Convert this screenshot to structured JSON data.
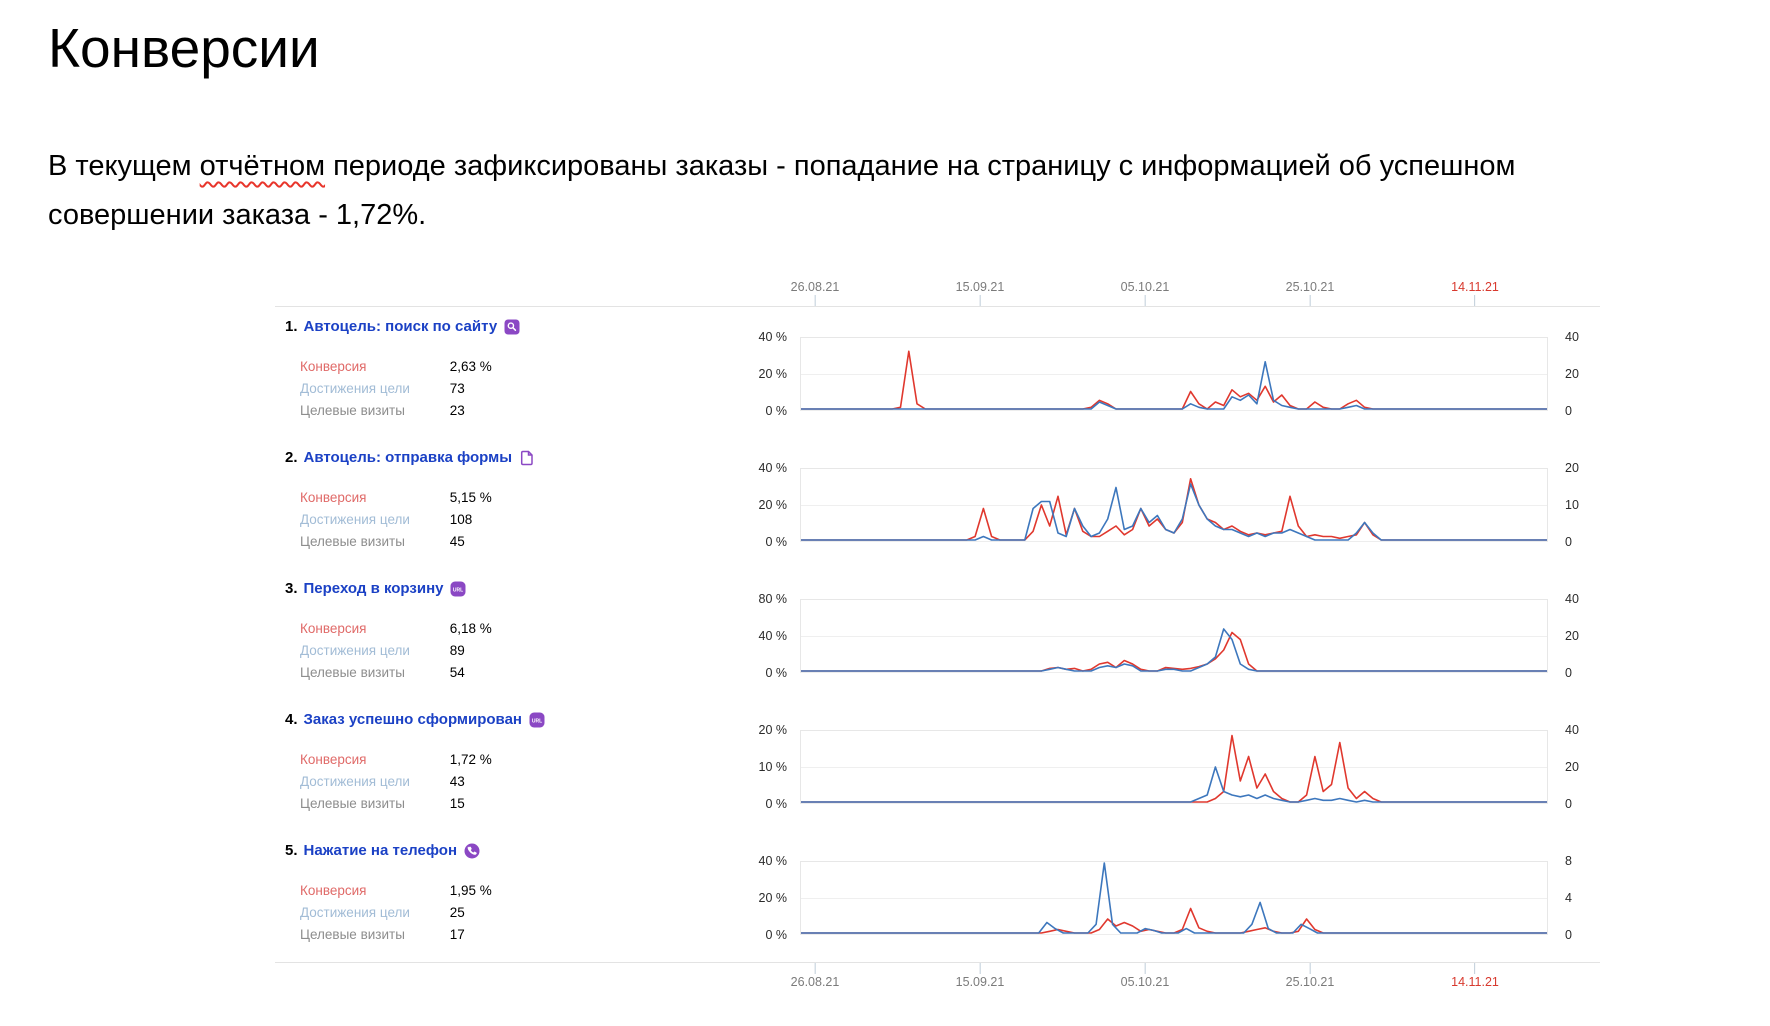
{
  "title": "Конверсии",
  "intro": {
    "before": "В текущем ",
    "misspelled": "отчётном",
    "after": " периоде зафиксированы заказы - попадание на страницу с информацией об успешном совершении заказа - 1,72%."
  },
  "colors": {
    "red_line": "#e0382e",
    "blue_line": "#3d77bd",
    "goal_link": "#1b41c5",
    "badge_purple": "#8b48c4",
    "conversion_label": "#e06a68",
    "reaches_label": "#a2bcd6",
    "visits_label": "#8d8d8d",
    "current_date": "#d8392e"
  },
  "report": {
    "stat_labels": {
      "conversion": "Конверсия",
      "goal_reaches": "Достижения цели",
      "target_visits": "Целевые визиты"
    },
    "dates": [
      {
        "label": "26.08.21",
        "current": false,
        "x": 540
      },
      {
        "label": "15.09.21",
        "current": false,
        "x": 705
      },
      {
        "label": "05.10.21",
        "current": false,
        "x": 870
      },
      {
        "label": "25.10.21",
        "current": false,
        "x": 1035
      },
      {
        "label": "14.11.21",
        "current": true,
        "x": 1200
      }
    ],
    "goals": [
      {
        "number": "1.",
        "name": "Автоцель: поиск по сайту",
        "icon": "search",
        "conversion": "2,63 %",
        "goal_reaches": "73",
        "target_visits": "23"
      },
      {
        "number": "2.",
        "name": "Автоцель: отправка формы",
        "icon": "form",
        "conversion": "5,15 %",
        "goal_reaches": "108",
        "target_visits": "45"
      },
      {
        "number": "3.",
        "name": "Переход в корзину",
        "icon": "url",
        "conversion": "6,18 %",
        "goal_reaches": "89",
        "target_visits": "54"
      },
      {
        "number": "4.",
        "name": "Заказ успешно сформирован",
        "icon": "url",
        "conversion": "1,72 %",
        "goal_reaches": "43",
        "target_visits": "15"
      },
      {
        "number": "5.",
        "name": "Нажатие на телефон",
        "icon": "phone",
        "conversion": "1,95 %",
        "goal_reaches": "25",
        "target_visits": "17"
      }
    ]
  },
  "chart_data": [
    {
      "type": "line",
      "goal": "Автоцель: поиск по сайту",
      "x_tick_labels": [
        "26.08.21",
        "15.09.21",
        "05.10.21",
        "25.10.21",
        "14.11.21"
      ],
      "current_tick": "14.11.21",
      "left_axis": {
        "unit": "%",
        "ticks": [
          40,
          20,
          0
        ],
        "max": 40
      },
      "right_axis": {
        "ticks": [
          40,
          20,
          0
        ],
        "max": 40
      },
      "series": [
        {
          "name": "Конверсия",
          "axis": "left",
          "color": "#e0382e",
          "values": [
            0,
            0,
            0,
            0,
            0,
            0,
            0,
            0,
            0,
            0,
            0,
            0,
            1,
            33,
            3,
            0,
            0,
            0,
            0,
            0,
            0,
            0,
            0,
            0,
            0,
            0,
            0,
            0,
            0,
            0,
            0,
            0,
            0,
            0,
            0,
            1,
            5,
            3,
            0,
            0,
            0,
            0,
            0,
            0,
            0,
            0,
            0,
            10,
            3,
            0,
            4,
            2,
            11,
            7,
            9,
            5,
            13,
            4,
            8,
            2,
            0,
            0,
            4,
            1,
            0,
            0,
            3,
            5,
            1,
            0,
            0,
            0,
            0,
            0,
            0,
            0,
            0,
            0,
            0,
            0,
            0,
            0,
            0,
            0,
            0,
            0,
            0,
            0,
            0,
            0,
            0
          ]
        },
        {
          "name": "Достижения цели",
          "axis": "right",
          "color": "#3d77bd",
          "values": [
            0,
            0,
            0,
            0,
            0,
            0,
            0,
            0,
            0,
            0,
            0,
            0,
            0,
            0,
            0,
            0,
            0,
            0,
            0,
            0,
            0,
            0,
            0,
            0,
            0,
            0,
            0,
            0,
            0,
            0,
            0,
            0,
            0,
            0,
            0,
            0,
            4,
            2,
            0,
            0,
            0,
            0,
            0,
            0,
            0,
            0,
            0,
            3,
            1,
            0,
            0,
            0,
            7,
            5,
            8,
            3,
            27,
            5,
            2,
            1,
            0,
            0,
            0,
            0,
            0,
            0,
            1,
            2,
            0,
            0,
            0,
            0,
            0,
            0,
            0,
            0,
            0,
            0,
            0,
            0,
            0,
            0,
            0,
            0,
            0,
            0,
            0,
            0,
            0,
            0,
            0
          ]
        }
      ]
    },
    {
      "type": "line",
      "goal": "Автоцель: отправка формы",
      "x_tick_labels": [
        "26.08.21",
        "15.09.21",
        "05.10.21",
        "25.10.21",
        "14.11.21"
      ],
      "current_tick": "14.11.21",
      "left_axis": {
        "unit": "%",
        "ticks": [
          40,
          20,
          0
        ],
        "max": 40
      },
      "right_axis": {
        "ticks": [
          20,
          10,
          0
        ],
        "max": 20
      },
      "series": [
        {
          "name": "Конверсия",
          "axis": "left",
          "color": "#e0382e",
          "values": [
            0,
            0,
            0,
            0,
            0,
            0,
            0,
            0,
            0,
            0,
            0,
            0,
            0,
            0,
            0,
            0,
            0,
            0,
            0,
            0,
            0,
            2,
            18,
            2,
            0,
            0,
            0,
            0,
            5,
            20,
            8,
            25,
            3,
            18,
            5,
            2,
            2,
            5,
            8,
            3,
            6,
            18,
            8,
            12,
            6,
            4,
            10,
            35,
            20,
            12,
            10,
            6,
            8,
            5,
            3,
            4,
            3,
            4,
            5,
            25,
            8,
            2,
            3,
            2,
            2,
            1,
            2,
            3,
            10,
            3,
            0,
            0,
            0,
            0,
            0,
            0,
            0,
            0,
            0,
            0,
            0,
            0,
            0,
            0,
            0,
            0,
            0,
            0,
            0,
            0,
            0
          ]
        },
        {
          "name": "Достижения цели",
          "axis": "right",
          "color": "#3d77bd",
          "values": [
            0,
            0,
            0,
            0,
            0,
            0,
            0,
            0,
            0,
            0,
            0,
            0,
            0,
            0,
            0,
            0,
            0,
            0,
            0,
            0,
            0,
            0,
            1,
            0,
            0,
            0,
            0,
            0,
            9,
            11,
            11,
            2,
            1,
            9,
            4,
            1,
            2,
            6,
            15,
            3,
            4,
            9,
            5,
            7,
            3,
            2,
            6,
            16,
            10,
            6,
            4,
            3,
            3,
            2,
            1,
            2,
            1,
            2,
            2,
            3,
            2,
            1,
            0,
            0,
            0,
            0,
            0,
            2,
            5,
            2,
            0,
            0,
            0,
            0,
            0,
            0,
            0,
            0,
            0,
            0,
            0,
            0,
            0,
            0,
            0,
            0,
            0,
            0,
            0,
            0,
            0
          ]
        }
      ]
    },
    {
      "type": "line",
      "goal": "Переход в корзину",
      "x_tick_labels": [
        "26.08.21",
        "15.09.21",
        "05.10.21",
        "25.10.21",
        "14.11.21"
      ],
      "current_tick": "14.11.21",
      "left_axis": {
        "unit": "%",
        "ticks": [
          80,
          40,
          0
        ],
        "max": 80
      },
      "right_axis": {
        "ticks": [
          40,
          20,
          0
        ],
        "max": 40
      },
      "series": [
        {
          "name": "Конверсия",
          "axis": "left",
          "color": "#e0382e",
          "values": [
            0,
            0,
            0,
            0,
            0,
            0,
            0,
            0,
            0,
            0,
            0,
            0,
            0,
            0,
            0,
            0,
            0,
            0,
            0,
            0,
            0,
            0,
            0,
            0,
            0,
            0,
            0,
            0,
            0,
            0,
            3,
            4,
            2,
            3,
            0,
            2,
            8,
            10,
            4,
            12,
            8,
            2,
            0,
            0,
            4,
            3,
            2,
            3,
            5,
            8,
            14,
            24,
            44,
            36,
            8,
            0,
            0,
            0,
            0,
            0,
            0,
            0,
            0,
            0,
            0,
            0,
            0,
            0,
            0,
            0,
            0,
            0,
            0,
            0,
            0,
            0,
            0,
            0,
            0,
            0,
            0,
            0,
            0,
            0,
            0,
            0,
            0,
            0,
            0,
            0,
            0
          ]
        },
        {
          "name": "Достижения цели",
          "axis": "right",
          "color": "#3d77bd",
          "values": [
            0,
            0,
            0,
            0,
            0,
            0,
            0,
            0,
            0,
            0,
            0,
            0,
            0,
            0,
            0,
            0,
            0,
            0,
            0,
            0,
            0,
            0,
            0,
            0,
            0,
            0,
            0,
            0,
            0,
            0,
            1,
            2,
            1,
            0,
            0,
            0,
            2,
            3,
            2,
            4,
            3,
            0,
            0,
            0,
            1,
            1,
            0,
            0,
            2,
            4,
            8,
            24,
            18,
            4,
            1,
            0,
            0,
            0,
            0,
            0,
            0,
            0,
            0,
            0,
            0,
            0,
            0,
            0,
            0,
            0,
            0,
            0,
            0,
            0,
            0,
            0,
            0,
            0,
            0,
            0,
            0,
            0,
            0,
            0,
            0,
            0,
            0,
            0,
            0,
            0,
            0
          ]
        }
      ]
    },
    {
      "type": "line",
      "goal": "Заказ успешно сформирован",
      "x_tick_labels": [
        "26.08.21",
        "15.09.21",
        "05.10.21",
        "25.10.21",
        "14.11.21"
      ],
      "current_tick": "14.11.21",
      "left_axis": {
        "unit": "%",
        "ticks": [
          20,
          10,
          0
        ],
        "max": 20
      },
      "right_axis": {
        "ticks": [
          40,
          20,
          0
        ],
        "max": 40
      },
      "series": [
        {
          "name": "Конверсия",
          "axis": "left",
          "color": "#e0382e",
          "values": [
            0,
            0,
            0,
            0,
            0,
            0,
            0,
            0,
            0,
            0,
            0,
            0,
            0,
            0,
            0,
            0,
            0,
            0,
            0,
            0,
            0,
            0,
            0,
            0,
            0,
            0,
            0,
            0,
            0,
            0,
            0,
            0,
            0,
            0,
            0,
            0,
            0,
            0,
            0,
            0,
            0,
            0,
            0,
            0,
            0,
            0,
            0,
            0,
            0,
            0,
            1,
            3,
            19,
            6,
            13,
            4,
            8,
            3,
            1,
            0,
            0,
            2,
            13,
            3,
            5,
            17,
            4,
            1,
            3,
            1,
            0,
            0,
            0,
            0,
            0,
            0,
            0,
            0,
            0,
            0,
            0,
            0,
            0,
            0,
            0,
            0,
            0,
            0,
            0,
            0,
            0
          ]
        },
        {
          "name": "Достижения цели",
          "axis": "right",
          "color": "#3d77bd",
          "values": [
            0,
            0,
            0,
            0,
            0,
            0,
            0,
            0,
            0,
            0,
            0,
            0,
            0,
            0,
            0,
            0,
            0,
            0,
            0,
            0,
            0,
            0,
            0,
            0,
            0,
            0,
            0,
            0,
            0,
            0,
            0,
            0,
            0,
            0,
            0,
            0,
            0,
            0,
            0,
            0,
            0,
            0,
            0,
            0,
            0,
            0,
            0,
            0,
            2,
            4,
            20,
            6,
            4,
            3,
            4,
            2,
            4,
            2,
            1,
            0,
            0,
            1,
            2,
            1,
            1,
            2,
            1,
            0,
            1,
            0,
            0,
            0,
            0,
            0,
            0,
            0,
            0,
            0,
            0,
            0,
            0,
            0,
            0,
            0,
            0,
            0,
            0,
            0,
            0,
            0,
            0
          ]
        }
      ]
    },
    {
      "type": "line",
      "goal": "Нажатие на телефон",
      "x_tick_labels": [
        "26.08.21",
        "15.09.21",
        "05.10.21",
        "25.10.21",
        "14.11.21"
      ],
      "current_tick": "14.11.21",
      "left_axis": {
        "unit": "%",
        "ticks": [
          40,
          20,
          0
        ],
        "max": 40
      },
      "right_axis": {
        "ticks": [
          8,
          4,
          0
        ],
        "max": 8
      },
      "series": [
        {
          "name": "Конверсия",
          "axis": "left",
          "color": "#e0382e",
          "values": [
            0,
            0,
            0,
            0,
            0,
            0,
            0,
            0,
            0,
            0,
            0,
            0,
            0,
            0,
            0,
            0,
            0,
            0,
            0,
            0,
            0,
            0,
            0,
            0,
            0,
            0,
            0,
            0,
            0,
            0,
            1,
            2,
            1,
            0,
            0,
            0,
            2,
            8,
            4,
            6,
            4,
            1,
            2,
            1,
            0,
            0,
            2,
            14,
            3,
            1,
            0,
            0,
            0,
            0,
            1,
            2,
            3,
            1,
            0,
            0,
            1,
            8,
            2,
            0,
            0,
            0,
            0,
            0,
            0,
            0,
            0,
            0,
            0,
            0,
            0,
            0,
            0,
            0,
            0,
            0,
            0,
            0,
            0,
            0,
            0,
            0,
            0,
            0,
            0,
            0,
            0
          ]
        },
        {
          "name": "Достижения цели",
          "axis": "right",
          "color": "#3d77bd",
          "values": [
            0,
            0,
            0,
            0,
            0,
            0,
            0,
            0,
            0,
            0,
            0,
            0,
            0,
            0,
            0,
            0,
            0,
            0,
            0,
            0,
            0,
            0,
            0,
            0,
            0,
            0,
            0,
            0,
            0,
            0,
            1.2,
            0.5,
            0,
            0,
            0,
            0,
            1,
            8,
            1,
            0,
            0,
            0,
            0.5,
            0.3,
            0,
            0,
            0,
            0.5,
            0,
            0,
            0,
            0,
            0,
            0,
            0,
            1,
            3.5,
            0.5,
            0,
            0,
            0,
            1,
            0.5,
            0,
            0,
            0,
            0,
            0,
            0,
            0,
            0,
            0,
            0,
            0,
            0,
            0,
            0,
            0,
            0,
            0,
            0,
            0,
            0,
            0,
            0,
            0,
            0,
            0,
            0,
            0,
            0,
            0
          ]
        }
      ]
    }
  ]
}
